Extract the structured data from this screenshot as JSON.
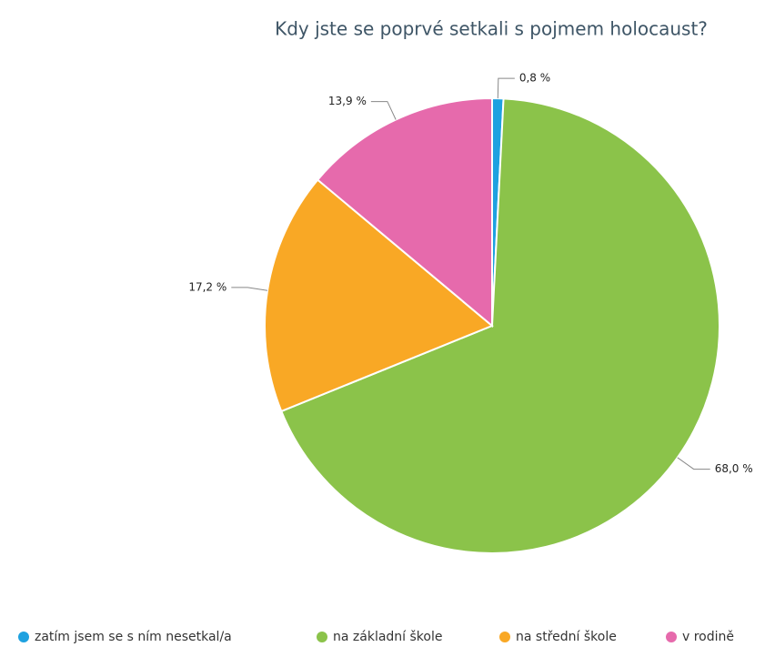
{
  "chart_data": {
    "type": "pie",
    "title": "Kdy jste se poprvé setkali s pojmem holocaust?",
    "categories": [
      "zatím jsem se s ním nesetkal/a",
      "na základní škole",
      "na střední škole",
      "v rodině"
    ],
    "values": [
      0.8,
      68.0,
      17.2,
      13.9
    ],
    "value_labels": [
      "0,8 %",
      "68,0 %",
      "17,2 %",
      "13,9 %"
    ],
    "colors": [
      "#1ea1e0",
      "#8bc34a",
      "#f9a825",
      "#e66aac"
    ],
    "legend": "bottom"
  }
}
